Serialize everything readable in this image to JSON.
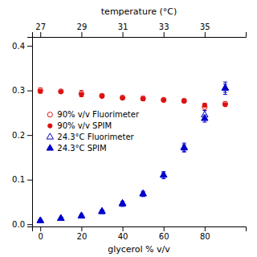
{
  "chart_data": {
    "type": "scatter",
    "x": [
      0,
      10,
      20,
      30,
      40,
      50,
      60,
      70,
      80,
      90
    ],
    "xlabel": "glycerol % v/v",
    "xlim": [
      -4,
      100
    ],
    "xticks": [
      0,
      20,
      40,
      60,
      80
    ],
    "x2label": "temperature (°C)",
    "x2lim": [
      26.6,
      37
    ],
    "x2ticks": [
      27,
      29,
      31,
      33,
      35
    ],
    "ylim": [
      -0.005,
      0.42
    ],
    "yticks": [
      {
        "value": 0.0,
        "label": "0.0"
      },
      0.1,
      0.2,
      0.3,
      0.4
    ],
    "grid": false,
    "legend": "center left",
    "series": [
      {
        "name": "90% v/v Fluorimeter",
        "color": "#dd1111",
        "marker": "open-circle",
        "values": [
          0.3,
          0.298,
          0.293,
          0.288,
          0.284,
          0.282,
          0.279,
          0.277,
          0.263,
          0.27
        ],
        "yerr": [
          0.006,
          0.003,
          0.007,
          0.004,
          0.004,
          0.005,
          0.004,
          0.004,
          0.007,
          0.005
        ]
      },
      {
        "name": "90% v/v SPIM",
        "color": "#dd1111",
        "marker": "circle",
        "values": [
          0.298,
          0.297,
          0.291,
          0.287,
          0.283,
          0.281,
          0.278,
          0.276,
          0.267,
          0.268
        ],
        "yerr": [
          0.003,
          0.002,
          0.004,
          0.003,
          0.003,
          0.003,
          0.003,
          0.003,
          0.004,
          0.003
        ]
      },
      {
        "name": "24.3°C Fluorimeter",
        "color": "#0000cc",
        "marker": "open-triangle",
        "values": [
          0.008,
          0.013,
          0.018,
          0.028,
          0.045,
          0.068,
          0.11,
          0.172,
          0.245,
          0.305
        ],
        "yerr": [
          0.003,
          0.003,
          0.004,
          0.004,
          0.005,
          0.006,
          0.008,
          0.01,
          0.01,
          0.014
        ]
      },
      {
        "name": "24.3°C SPIM",
        "color": "#0000cc",
        "marker": "triangle",
        "values": [
          0.008,
          0.013,
          0.019,
          0.029,
          0.047,
          0.068,
          0.11,
          0.171,
          0.237,
          0.305
        ],
        "yerr": [
          0.002,
          0.002,
          0.003,
          0.003,
          0.004,
          0.004,
          0.005,
          0.007,
          0.008,
          0.009
        ]
      }
    ]
  }
}
